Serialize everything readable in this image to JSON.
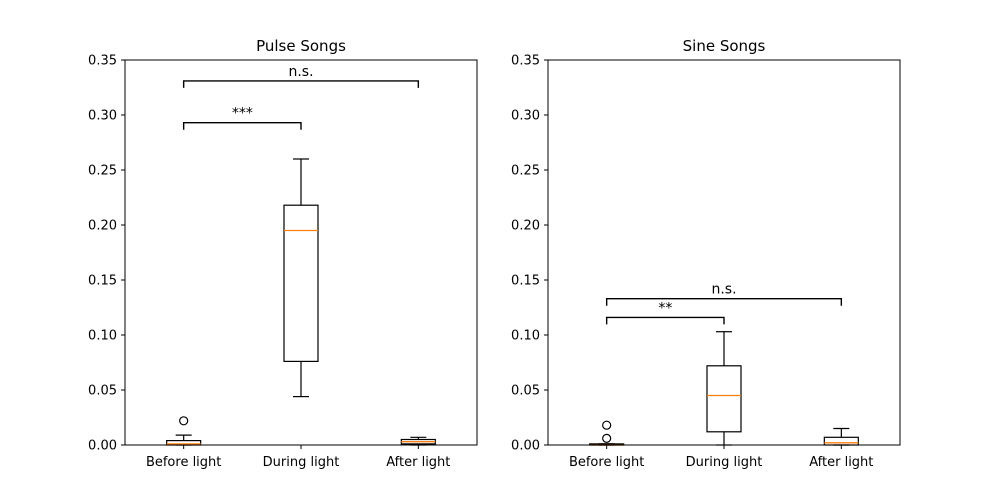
{
  "chart_data": [
    {
      "type": "box",
      "title": "Pulse Songs",
      "xlabel": "",
      "ylabel": "",
      "categories": [
        "Before light",
        "During light",
        "After light"
      ],
      "ylim": [
        0,
        0.35
      ],
      "yticks": [
        "0.00",
        "0.05",
        "0.10",
        "0.15",
        "0.20",
        "0.25",
        "0.30",
        "0.35"
      ],
      "boxes": [
        {
          "category": "Before light",
          "whisker_low": 0.0,
          "q1": 0.0,
          "median": 0.001,
          "q3": 0.004,
          "whisker_high": 0.009,
          "outliers": [
            0.022
          ]
        },
        {
          "category": "During light",
          "whisker_low": 0.044,
          "q1": 0.076,
          "median": 0.195,
          "q3": 0.218,
          "whisker_high": 0.26,
          "outliers": []
        },
        {
          "category": "After light",
          "whisker_low": 0.0,
          "q1": 0.001,
          "median": 0.003,
          "q3": 0.005,
          "whisker_high": 0.007,
          "outliers": []
        }
      ],
      "significance": [
        {
          "from": "Before light",
          "to": "During light",
          "level": 0.293,
          "label": "***"
        },
        {
          "from": "Before light",
          "to": "After light",
          "level": 0.331,
          "label": "n.s."
        }
      ]
    },
    {
      "type": "box",
      "title": "Sine Songs",
      "xlabel": "",
      "ylabel": "",
      "categories": [
        "Before light",
        "During light",
        "After light"
      ],
      "ylim": [
        0,
        0.35
      ],
      "yticks": [
        "0.00",
        "0.05",
        "0.10",
        "0.15",
        "0.20",
        "0.25",
        "0.30",
        "0.35"
      ],
      "boxes": [
        {
          "category": "Before light",
          "whisker_low": 0.0,
          "q1": 0.0,
          "median": 0.0,
          "q3": 0.001,
          "whisker_high": 0.001,
          "outliers": [
            0.006,
            0.018
          ]
        },
        {
          "category": "During light",
          "whisker_low": 0.0,
          "q1": 0.012,
          "median": 0.045,
          "q3": 0.072,
          "whisker_high": 0.103,
          "outliers": []
        },
        {
          "category": "After light",
          "whisker_low": 0.0,
          "q1": 0.0,
          "median": 0.002,
          "q3": 0.007,
          "whisker_high": 0.015,
          "outliers": []
        }
      ],
      "significance": [
        {
          "from": "Before light",
          "to": "During light",
          "level": 0.116,
          "label": "**"
        },
        {
          "from": "Before light",
          "to": "After light",
          "level": 0.133,
          "label": "n.s."
        }
      ]
    }
  ],
  "colors": {
    "box": "#000000",
    "median": "#ff7f0e",
    "background": "#ffffff"
  }
}
